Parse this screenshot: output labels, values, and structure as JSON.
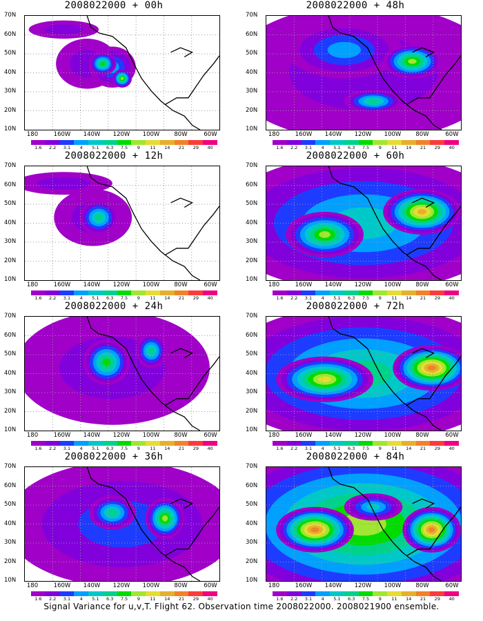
{
  "panels": [
    {
      "title": "2008022000 + 00h"
    },
    {
      "title": "2008022000 + 48h"
    },
    {
      "title": "2008022000 + 12h"
    },
    {
      "title": "2008022000 + 60h"
    },
    {
      "title": "2008022000 + 24h"
    },
    {
      "title": "2008022000 + 72h"
    },
    {
      "title": "2008022000 + 36h"
    },
    {
      "title": "2008022000 + 84h"
    }
  ],
  "lat_labels": [
    "70N",
    "60N",
    "50N",
    "40N",
    "30N",
    "20N",
    "10N"
  ],
  "lon_labels": [
    "180",
    "160W",
    "140W",
    "120W",
    "100W",
    "80W",
    "60W"
  ],
  "colorbar": {
    "labels": [
      "1.6",
      "2.2",
      "3.1",
      "4",
      "5.1",
      "6.3",
      "7.5",
      "9",
      "11",
      "14",
      "21",
      "29",
      "40"
    ],
    "colors": [
      "#a000c8",
      "#8200dc",
      "#1e3cff",
      "#00a0ff",
      "#00c8c8",
      "#00d28c",
      "#00dc00",
      "#a0e632",
      "#e6dc32",
      "#e6af2d",
      "#f08228",
      "#fa3c3c",
      "#f00082"
    ]
  },
  "footer": "Signal Variance for u,v,T. Flight 62. Observation time 2008022000. 2008021900 ensemble."
}
